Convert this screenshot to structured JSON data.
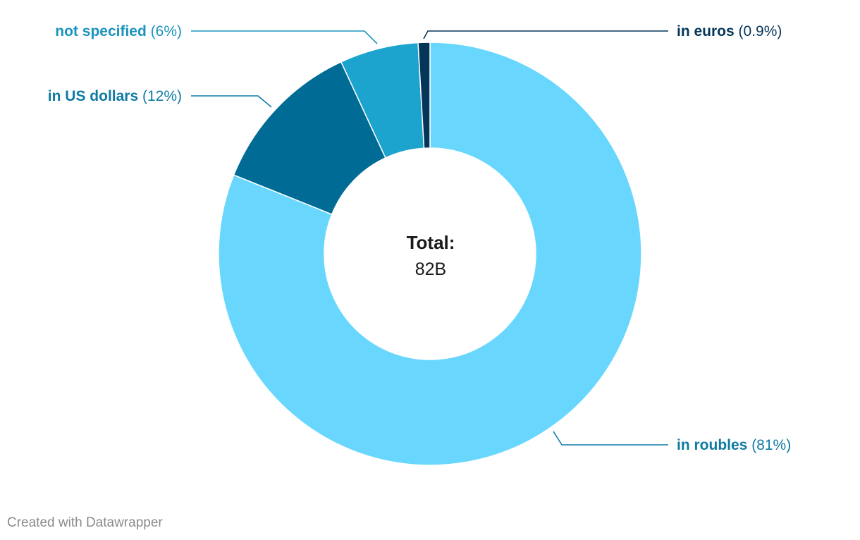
{
  "chart_data": {
    "type": "pie",
    "donut": true,
    "center_label": {
      "title": "Total:",
      "value": "82B"
    },
    "slices": [
      {
        "name": "in roubles",
        "value": 81,
        "percent_label": "(81%)",
        "color": "#69d7fd",
        "label_color": "#0f7aa3"
      },
      {
        "name": "in US dollars",
        "value": 12,
        "percent_label": "(12%)",
        "color": "#006b94",
        "label_color": "#0f7aa3"
      },
      {
        "name": "not specified",
        "value": 6,
        "percent_label": "(6%)",
        "color": "#1ca3ce",
        "label_color": "#1b93bd"
      },
      {
        "name": "in euros",
        "value": 0.9,
        "percent_label": "(0.9%)",
        "color": "#05365a",
        "label_color": "#05365a"
      }
    ]
  },
  "footer": {
    "credit": "Created with Datawrapper"
  }
}
